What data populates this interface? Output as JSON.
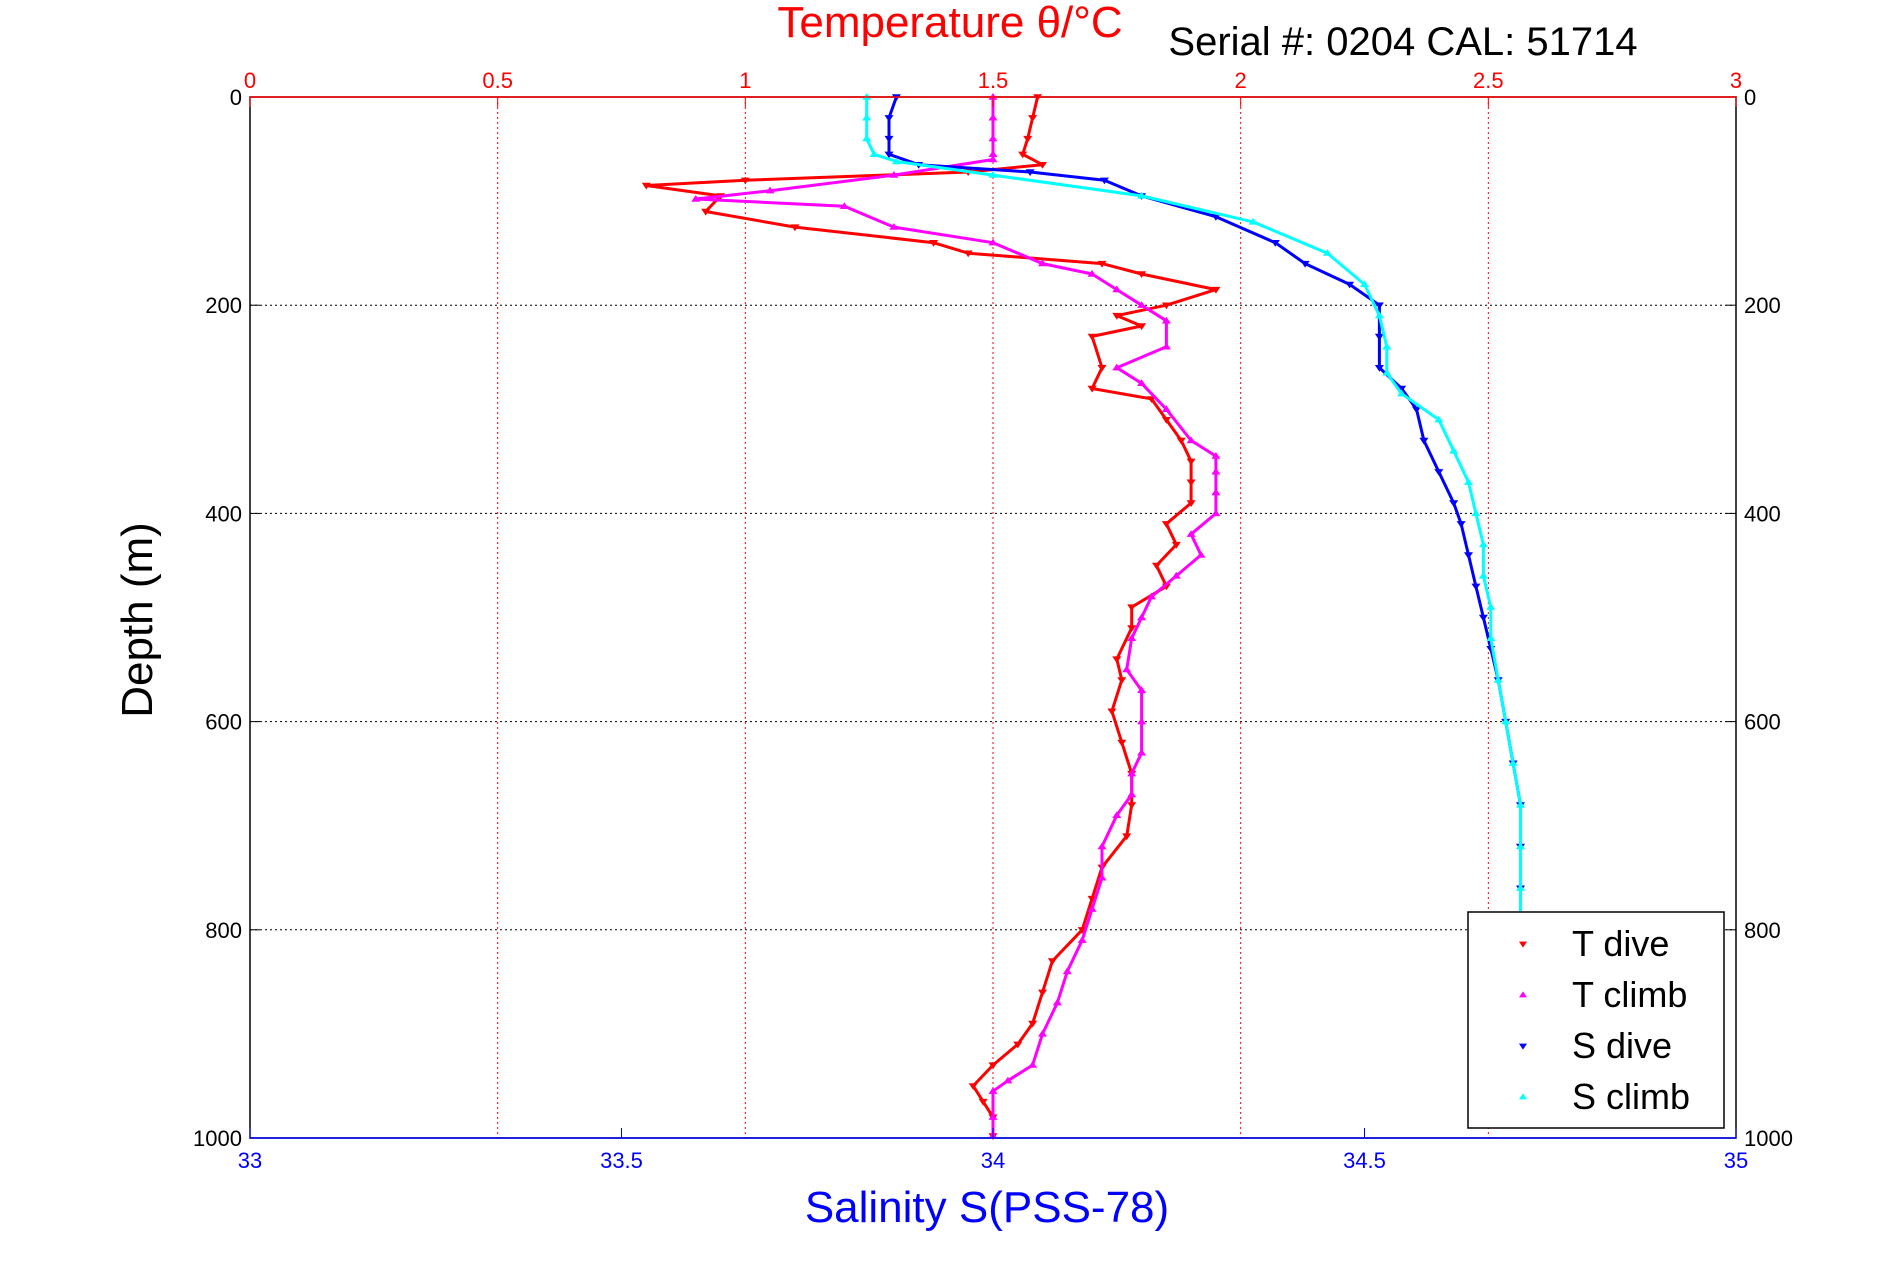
{
  "chart_data": {
    "type": "scatter",
    "title": "Temperature θ/°C",
    "annotation": "Serial #: 0204   CAL: 51714",
    "ylabel": "Depth (m)",
    "xlabel_bottom": "Salinity S(PSS-78)",
    "xlabel_top": "Temperature θ/°C",
    "ylim": [
      0,
      1000
    ],
    "y_reversed": true,
    "y_ticks": [
      0,
      200,
      400,
      600,
      800,
      1000
    ],
    "x_top": {
      "range": [
        0,
        3
      ],
      "ticks": [
        "0",
        "0.5",
        "1",
        "1.5",
        "2",
        "2.5",
        "3"
      ],
      "color": "#ff0000"
    },
    "x_bottom": {
      "range": [
        33,
        35
      ],
      "ticks": [
        "33",
        "33.5",
        "34",
        "34.5",
        "35"
      ],
      "color": "#0000ff"
    },
    "grid": true,
    "legend_position": "bottom-right",
    "legend": [
      "T dive",
      "T climb",
      "S dive",
      "S climb"
    ],
    "series": [
      {
        "name": "T dive",
        "axis": "top",
        "color": "#ff0000",
        "marker": "triangle-down",
        "points": [
          [
            1.59,
            0
          ],
          [
            1.58,
            20
          ],
          [
            1.57,
            40
          ],
          [
            1.56,
            55
          ],
          [
            1.6,
            65
          ],
          [
            1.45,
            72
          ],
          [
            1.0,
            80
          ],
          [
            0.8,
            85
          ],
          [
            0.95,
            95
          ],
          [
            0.92,
            110
          ],
          [
            1.1,
            125
          ],
          [
            1.38,
            140
          ],
          [
            1.45,
            150
          ],
          [
            1.72,
            160
          ],
          [
            1.8,
            170
          ],
          [
            1.95,
            185
          ],
          [
            1.85,
            200
          ],
          [
            1.75,
            210
          ],
          [
            1.8,
            220
          ],
          [
            1.7,
            230
          ],
          [
            1.72,
            260
          ],
          [
            1.7,
            280
          ],
          [
            1.82,
            290
          ],
          [
            1.85,
            310
          ],
          [
            1.88,
            330
          ],
          [
            1.9,
            350
          ],
          [
            1.9,
            370
          ],
          [
            1.9,
            390
          ],
          [
            1.85,
            410
          ],
          [
            1.87,
            430
          ],
          [
            1.83,
            450
          ],
          [
            1.85,
            470
          ],
          [
            1.78,
            490
          ],
          [
            1.78,
            510
          ],
          [
            1.75,
            540
          ],
          [
            1.76,
            560
          ],
          [
            1.74,
            590
          ],
          [
            1.76,
            620
          ],
          [
            1.78,
            650
          ],
          [
            1.78,
            680
          ],
          [
            1.77,
            710
          ],
          [
            1.72,
            740
          ],
          [
            1.7,
            770
          ],
          [
            1.68,
            800
          ],
          [
            1.62,
            830
          ],
          [
            1.6,
            860
          ],
          [
            1.58,
            890
          ],
          [
            1.55,
            910
          ],
          [
            1.5,
            930
          ],
          [
            1.46,
            950
          ],
          [
            1.48,
            965
          ],
          [
            1.5,
            980
          ],
          [
            1.5,
            998
          ]
        ]
      },
      {
        "name": "T climb",
        "axis": "top",
        "color": "#ff00ff",
        "marker": "triangle-up",
        "points": [
          [
            1.5,
            0
          ],
          [
            1.5,
            20
          ],
          [
            1.5,
            40
          ],
          [
            1.5,
            55
          ],
          [
            1.5,
            60
          ],
          [
            1.3,
            75
          ],
          [
            1.05,
            90
          ],
          [
            0.9,
            98
          ],
          [
            1.2,
            105
          ],
          [
            1.3,
            125
          ],
          [
            1.5,
            140
          ],
          [
            1.6,
            160
          ],
          [
            1.7,
            170
          ],
          [
            1.75,
            185
          ],
          [
            1.8,
            200
          ],
          [
            1.85,
            215
          ],
          [
            1.85,
            240
          ],
          [
            1.75,
            260
          ],
          [
            1.8,
            275
          ],
          [
            1.85,
            300
          ],
          [
            1.9,
            330
          ],
          [
            1.95,
            345
          ],
          [
            1.95,
            360
          ],
          [
            1.95,
            380
          ],
          [
            1.95,
            400
          ],
          [
            1.9,
            420
          ],
          [
            1.92,
            440
          ],
          [
            1.87,
            460
          ],
          [
            1.82,
            480
          ],
          [
            1.8,
            500
          ],
          [
            1.78,
            520
          ],
          [
            1.77,
            550
          ],
          [
            1.8,
            570
          ],
          [
            1.8,
            600
          ],
          [
            1.8,
            630
          ],
          [
            1.78,
            650
          ],
          [
            1.78,
            670
          ],
          [
            1.75,
            690
          ],
          [
            1.72,
            720
          ],
          [
            1.72,
            750
          ],
          [
            1.7,
            780
          ],
          [
            1.68,
            810
          ],
          [
            1.65,
            840
          ],
          [
            1.63,
            870
          ],
          [
            1.6,
            900
          ],
          [
            1.58,
            930
          ],
          [
            1.53,
            945
          ],
          [
            1.5,
            955
          ],
          [
            1.5,
            980
          ],
          [
            1.5,
            998
          ]
        ]
      },
      {
        "name": "S dive",
        "axis": "bottom",
        "color": "#0000ff",
        "marker": "triangle-down",
        "points": [
          [
            33.87,
            0
          ],
          [
            33.86,
            20
          ],
          [
            33.86,
            40
          ],
          [
            33.86,
            55
          ],
          [
            33.9,
            65
          ],
          [
            34.05,
            72
          ],
          [
            34.15,
            80
          ],
          [
            34.2,
            95
          ],
          [
            34.3,
            115
          ],
          [
            34.38,
            140
          ],
          [
            34.42,
            160
          ],
          [
            34.48,
            180
          ],
          [
            34.52,
            200
          ],
          [
            34.52,
            230
          ],
          [
            34.52,
            260
          ],
          [
            34.55,
            280
          ],
          [
            34.57,
            300
          ],
          [
            34.58,
            330
          ],
          [
            34.6,
            360
          ],
          [
            34.62,
            390
          ],
          [
            34.63,
            410
          ],
          [
            34.64,
            440
          ],
          [
            34.65,
            470
          ],
          [
            34.66,
            500
          ],
          [
            34.67,
            530
          ],
          [
            34.68,
            560
          ],
          [
            34.69,
            600
          ],
          [
            34.7,
            640
          ],
          [
            34.71,
            680
          ],
          [
            34.71,
            720
          ],
          [
            34.71,
            760
          ],
          [
            34.71,
            800
          ]
        ]
      },
      {
        "name": "S climb",
        "axis": "bottom",
        "color": "#00ffff",
        "marker": "triangle-up",
        "points": [
          [
            33.83,
            0
          ],
          [
            33.83,
            20
          ],
          [
            33.83,
            40
          ],
          [
            33.84,
            55
          ],
          [
            33.87,
            62
          ],
          [
            34.0,
            75
          ],
          [
            34.2,
            95
          ],
          [
            34.35,
            120
          ],
          [
            34.45,
            150
          ],
          [
            34.5,
            180
          ],
          [
            34.52,
            210
          ],
          [
            34.53,
            240
          ],
          [
            34.53,
            265
          ],
          [
            34.55,
            285
          ],
          [
            34.6,
            310
          ],
          [
            34.62,
            340
          ],
          [
            34.64,
            370
          ],
          [
            34.65,
            400
          ],
          [
            34.66,
            430
          ],
          [
            34.66,
            460
          ],
          [
            34.67,
            490
          ],
          [
            34.67,
            520
          ],
          [
            34.68,
            560
          ],
          [
            34.69,
            600
          ],
          [
            34.7,
            640
          ],
          [
            34.71,
            680
          ],
          [
            34.71,
            720
          ],
          [
            34.71,
            760
          ],
          [
            34.71,
            800
          ]
        ]
      }
    ]
  }
}
